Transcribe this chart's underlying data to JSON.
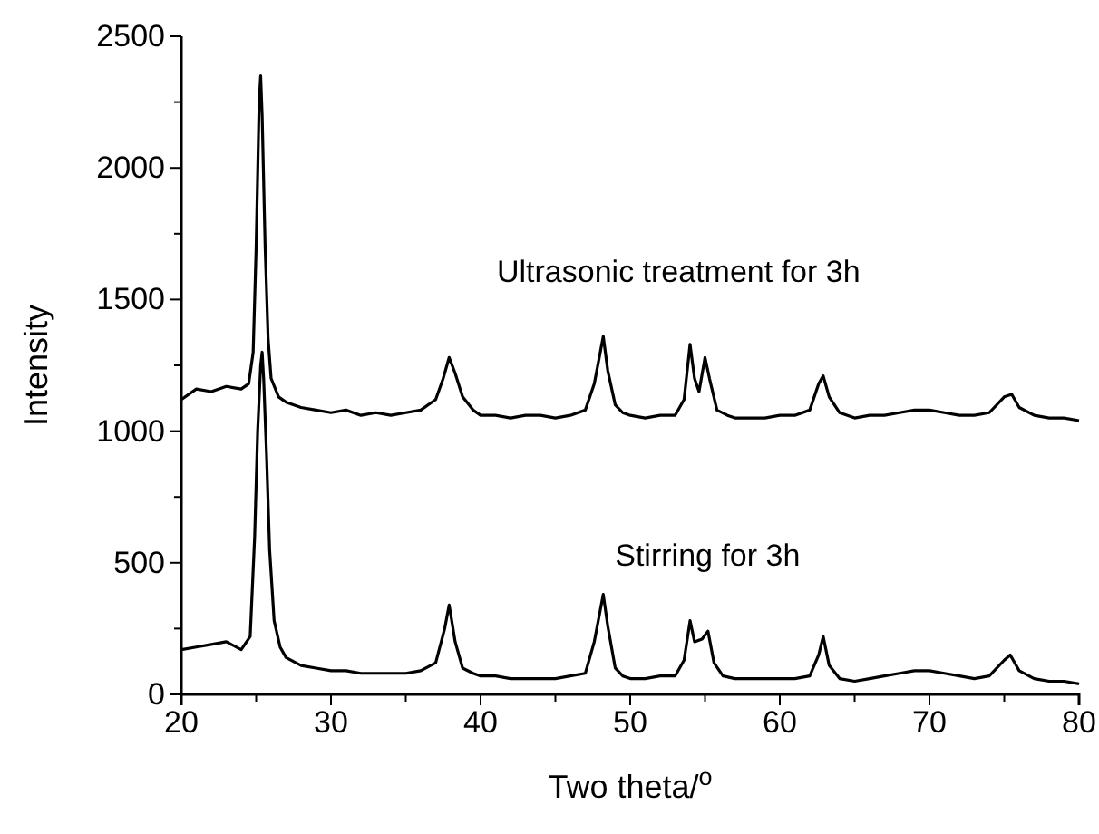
{
  "chart_data": {
    "type": "line",
    "xlabel": "Two theta/$^{o}$",
    "ylabel": "Intensity",
    "xlim": [
      20,
      80
    ],
    "ylim": [
      0,
      2500
    ],
    "xticks": [
      20,
      {
        "value": 25,
        "label": null
      },
      30,
      {
        "value": 35,
        "label": null
      },
      40,
      {
        "value": 45,
        "label": null
      },
      50,
      {
        "value": 55,
        "label": null
      },
      60,
      {
        "value": 65,
        "label": null
      },
      70,
      {
        "value": 75,
        "label": null
      },
      80
    ],
    "yticks": [
      0,
      {
        "value": 250,
        "label": null
      },
      500,
      {
        "value": 750,
        "label": null
      },
      1000,
      {
        "value": 1250,
        "label": null
      },
      1500,
      {
        "value": 1750,
        "label": null
      },
      2000,
      {
        "value": 2250,
        "label": null
      },
      2500
    ],
    "grid": false,
    "marker": "none",
    "line_style": "solid",
    "annotations": [
      "Ultrasonic treatment for 3h",
      "Stirring for 3h"
    ],
    "series": [
      {
        "color": "#000000",
        "x": [
          20,
          21,
          22,
          23,
          24,
          24.5,
          24.8,
          25.0,
          25.2,
          25.3,
          25.4,
          25.6,
          25.8,
          26,
          26.5,
          27,
          28,
          29,
          30,
          31,
          32,
          33,
          34,
          35,
          36,
          37,
          37.5,
          37.9,
          38.3,
          38.8,
          39.5,
          40,
          41,
          42,
          43,
          44,
          45,
          46,
          47,
          47.6,
          48.0,
          48.2,
          48.5,
          49,
          49.5,
          50,
          51,
          52,
          53,
          53.6,
          54.0,
          54.3,
          54.6,
          55.0,
          55.3,
          55.8,
          56.5,
          57,
          58,
          59,
          60,
          61,
          62,
          62.6,
          62.9,
          63.3,
          64,
          65,
          66,
          67,
          68,
          69,
          70,
          71,
          72,
          73,
          74,
          75,
          75.5,
          76,
          77,
          78,
          79,
          80
        ],
        "values": [
          1120,
          1160,
          1150,
          1170,
          1160,
          1180,
          1300,
          1700,
          2250,
          2350,
          2200,
          1700,
          1350,
          1200,
          1130,
          1110,
          1090,
          1080,
          1070,
          1080,
          1060,
          1070,
          1060,
          1070,
          1080,
          1120,
          1200,
          1280,
          1220,
          1130,
          1080,
          1060,
          1060,
          1050,
          1060,
          1060,
          1050,
          1060,
          1080,
          1180,
          1300,
          1360,
          1230,
          1100,
          1070,
          1060,
          1050,
          1060,
          1060,
          1120,
          1330,
          1200,
          1150,
          1280,
          1200,
          1080,
          1060,
          1050,
          1050,
          1050,
          1060,
          1060,
          1080,
          1180,
          1210,
          1130,
          1070,
          1050,
          1060,
          1060,
          1070,
          1080,
          1080,
          1070,
          1060,
          1060,
          1070,
          1130,
          1140,
          1090,
          1060,
          1050,
          1050,
          1040
        ]
      },
      {
        "color": "#000000",
        "x": [
          20,
          21,
          22,
          23,
          24,
          24.6,
          24.9,
          25.1,
          25.3,
          25.4,
          25.5,
          25.7,
          25.9,
          26.2,
          26.6,
          27,
          28,
          29,
          30,
          31,
          32,
          33,
          34,
          35,
          36,
          37,
          37.6,
          37.9,
          38.3,
          38.8,
          39.5,
          40,
          41,
          42,
          43,
          44,
          45,
          46,
          47,
          47.6,
          48.0,
          48.2,
          48.5,
          49,
          49.5,
          50,
          51,
          52,
          53,
          53.6,
          54.0,
          54.3,
          54.8,
          55.2,
          55.6,
          56.2,
          57,
          58,
          59,
          60,
          61,
          62,
          62.6,
          62.9,
          63.3,
          64,
          65,
          66,
          67,
          68,
          69,
          70,
          71,
          72,
          73,
          74,
          75,
          75.4,
          76,
          77,
          78,
          79,
          80
        ],
        "values": [
          170,
          180,
          190,
          200,
          170,
          220,
          600,
          1000,
          1250,
          1300,
          1200,
          900,
          550,
          280,
          180,
          140,
          110,
          100,
          90,
          90,
          80,
          80,
          80,
          80,
          90,
          120,
          250,
          340,
          200,
          100,
          80,
          70,
          70,
          60,
          60,
          60,
          60,
          70,
          80,
          200,
          320,
          380,
          260,
          100,
          70,
          60,
          60,
          70,
          70,
          130,
          280,
          200,
          210,
          240,
          120,
          70,
          60,
          60,
          60,
          60,
          60,
          70,
          150,
          220,
          110,
          60,
          50,
          60,
          70,
          80,
          90,
          90,
          80,
          70,
          60,
          70,
          130,
          150,
          90,
          60,
          50,
          50,
          40
        ]
      }
    ]
  }
}
